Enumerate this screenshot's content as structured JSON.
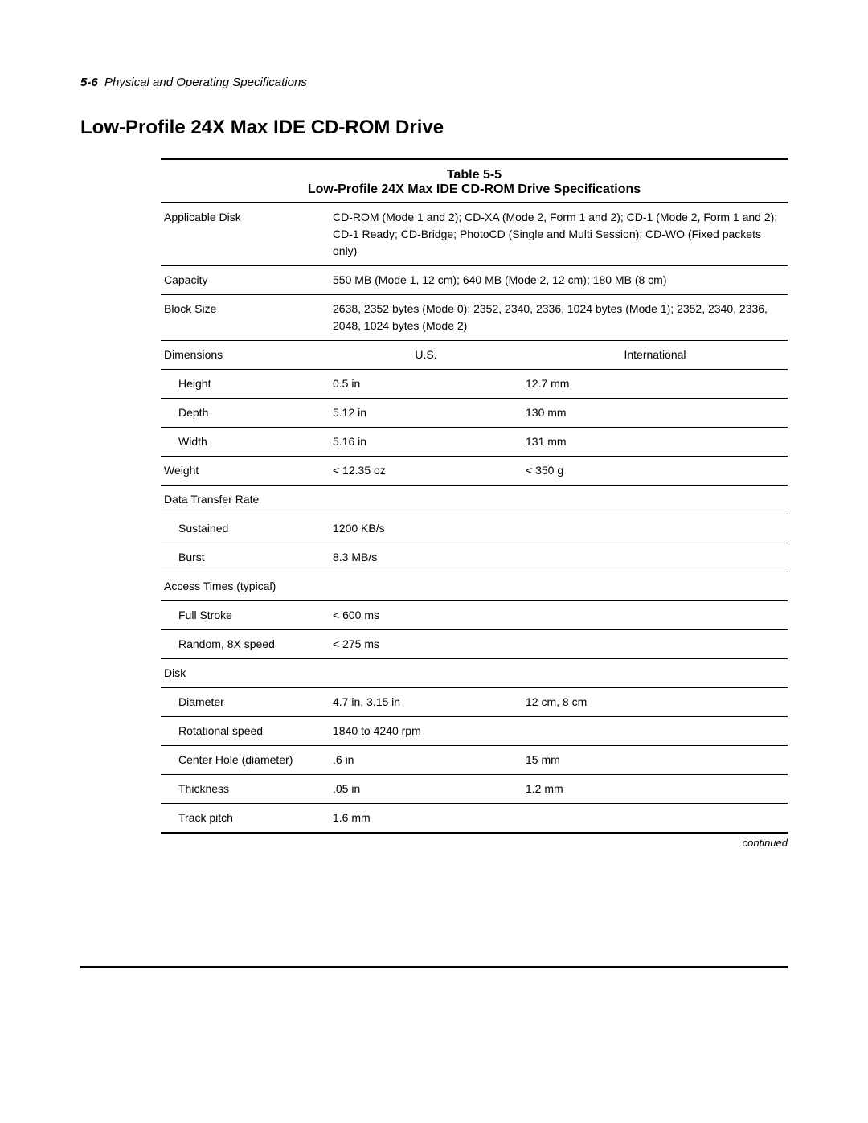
{
  "header": {
    "page_number": "5-6",
    "section_title": "Physical and Operating Specifications"
  },
  "heading": "Low-Profile 24X Max IDE CD-ROM Drive",
  "table": {
    "caption_number": "Table 5-5",
    "caption_title": "Low-Profile 24X Max IDE CD-ROM Drive Specifications",
    "rows": [
      {
        "type": "wide",
        "label": "Applicable Disk",
        "value": "CD-ROM (Mode 1 and 2); CD-XA (Mode 2, Form 1 and 2); CD-1 (Mode 2, Form 1 and 2); CD-1 Ready; CD-Bridge; PhotoCD (Single and Multi Session); CD-WO (Fixed packets only)",
        "border": true
      },
      {
        "type": "wide",
        "label": "Capacity",
        "value": "550 MB (Mode 1, 12 cm); 640 MB (Mode 2, 12 cm); 180 MB (8 cm)",
        "border": true
      },
      {
        "type": "wide",
        "label": "Block Size",
        "value": "2638, 2352 bytes (Mode 0); 2352, 2340, 2336, 1024 bytes (Mode 1); 2352, 2340, 2336, 2048, 1024 bytes (Mode 2)",
        "border": true
      },
      {
        "type": "dim-header",
        "label": "Dimensions",
        "us": "U.S.",
        "intl": "International",
        "border": true
      },
      {
        "type": "three",
        "label": "Height",
        "indent": true,
        "us": "0.5 in",
        "intl": "12.7 mm",
        "border": true
      },
      {
        "type": "three",
        "label": "Depth",
        "indent": true,
        "us": "5.12 in",
        "intl": "130 mm",
        "border": true
      },
      {
        "type": "three",
        "label": "Width",
        "indent": true,
        "us": "5.16 in",
        "intl": "131 mm",
        "border": true
      },
      {
        "type": "three",
        "label": "Weight",
        "indent": false,
        "us": "< 12.35 oz",
        "intl": "< 350 g",
        "border": true
      },
      {
        "type": "label-only",
        "label": "Data Transfer Rate",
        "border": true
      },
      {
        "type": "two",
        "label": "Sustained",
        "indent": true,
        "value": "1200 KB/s",
        "border": true
      },
      {
        "type": "two",
        "label": "Burst",
        "indent": true,
        "value": "8.3 MB/s",
        "border": true
      },
      {
        "type": "label-only",
        "label": "Access Times (typical)",
        "border": true
      },
      {
        "type": "two",
        "label": "Full Stroke",
        "indent": true,
        "value": "< 600 ms",
        "border": true
      },
      {
        "type": "two",
        "label": "Random, 8X speed",
        "indent": true,
        "value": "< 275 ms",
        "border": true
      },
      {
        "type": "label-only",
        "label": "Disk",
        "border": true
      },
      {
        "type": "three",
        "label": "Diameter",
        "indent": true,
        "us": "4.7 in, 3.15 in",
        "intl": "12 cm, 8 cm",
        "border": true
      },
      {
        "type": "two",
        "label": "Rotational speed",
        "indent": true,
        "value": "1840 to 4240 rpm",
        "border": true
      },
      {
        "type": "three",
        "label": "Center Hole (diameter)",
        "indent": true,
        "us": ".6 in",
        "intl": "15 mm",
        "border": true
      },
      {
        "type": "three",
        "label": "Thickness",
        "indent": true,
        "us": ".05 in",
        "intl": "1.2 mm",
        "border": true
      },
      {
        "type": "two",
        "label": "Track pitch",
        "indent": true,
        "value": "1.6 mm",
        "border": false,
        "last": true
      }
    ],
    "continued_label": "continued"
  }
}
